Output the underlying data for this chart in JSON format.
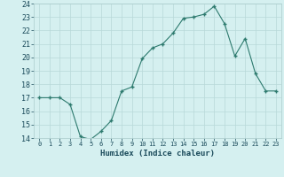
{
  "x": [
    0,
    1,
    2,
    3,
    4,
    5,
    6,
    7,
    8,
    9,
    10,
    11,
    12,
    13,
    14,
    15,
    16,
    17,
    18,
    19,
    20,
    21,
    22,
    23
  ],
  "y": [
    17,
    17,
    17,
    16.5,
    14.1,
    13.9,
    14.5,
    15.3,
    17.5,
    17.8,
    19.9,
    20.7,
    21.0,
    21.8,
    22.9,
    23.0,
    23.2,
    23.8,
    22.5,
    20.1,
    21.4,
    18.8,
    17.5,
    17.5
  ],
  "xlabel": "Humidex (Indice chaleur)",
  "line_color": "#2d7a6e",
  "marker_color": "#2d7a6e",
  "bg_color": "#d5f0f0",
  "grid_color": "#b8d8d8",
  "ylim": [
    14,
    24
  ],
  "xlim": [
    -0.5,
    23.5
  ],
  "yticks": [
    14,
    15,
    16,
    17,
    18,
    19,
    20,
    21,
    22,
    23,
    24
  ],
  "xticks": [
    0,
    1,
    2,
    3,
    4,
    5,
    6,
    7,
    8,
    9,
    10,
    11,
    12,
    13,
    14,
    15,
    16,
    17,
    18,
    19,
    20,
    21,
    22,
    23
  ],
  "xlabel_color": "#1a4a5a",
  "tick_color": "#1a4a5a"
}
